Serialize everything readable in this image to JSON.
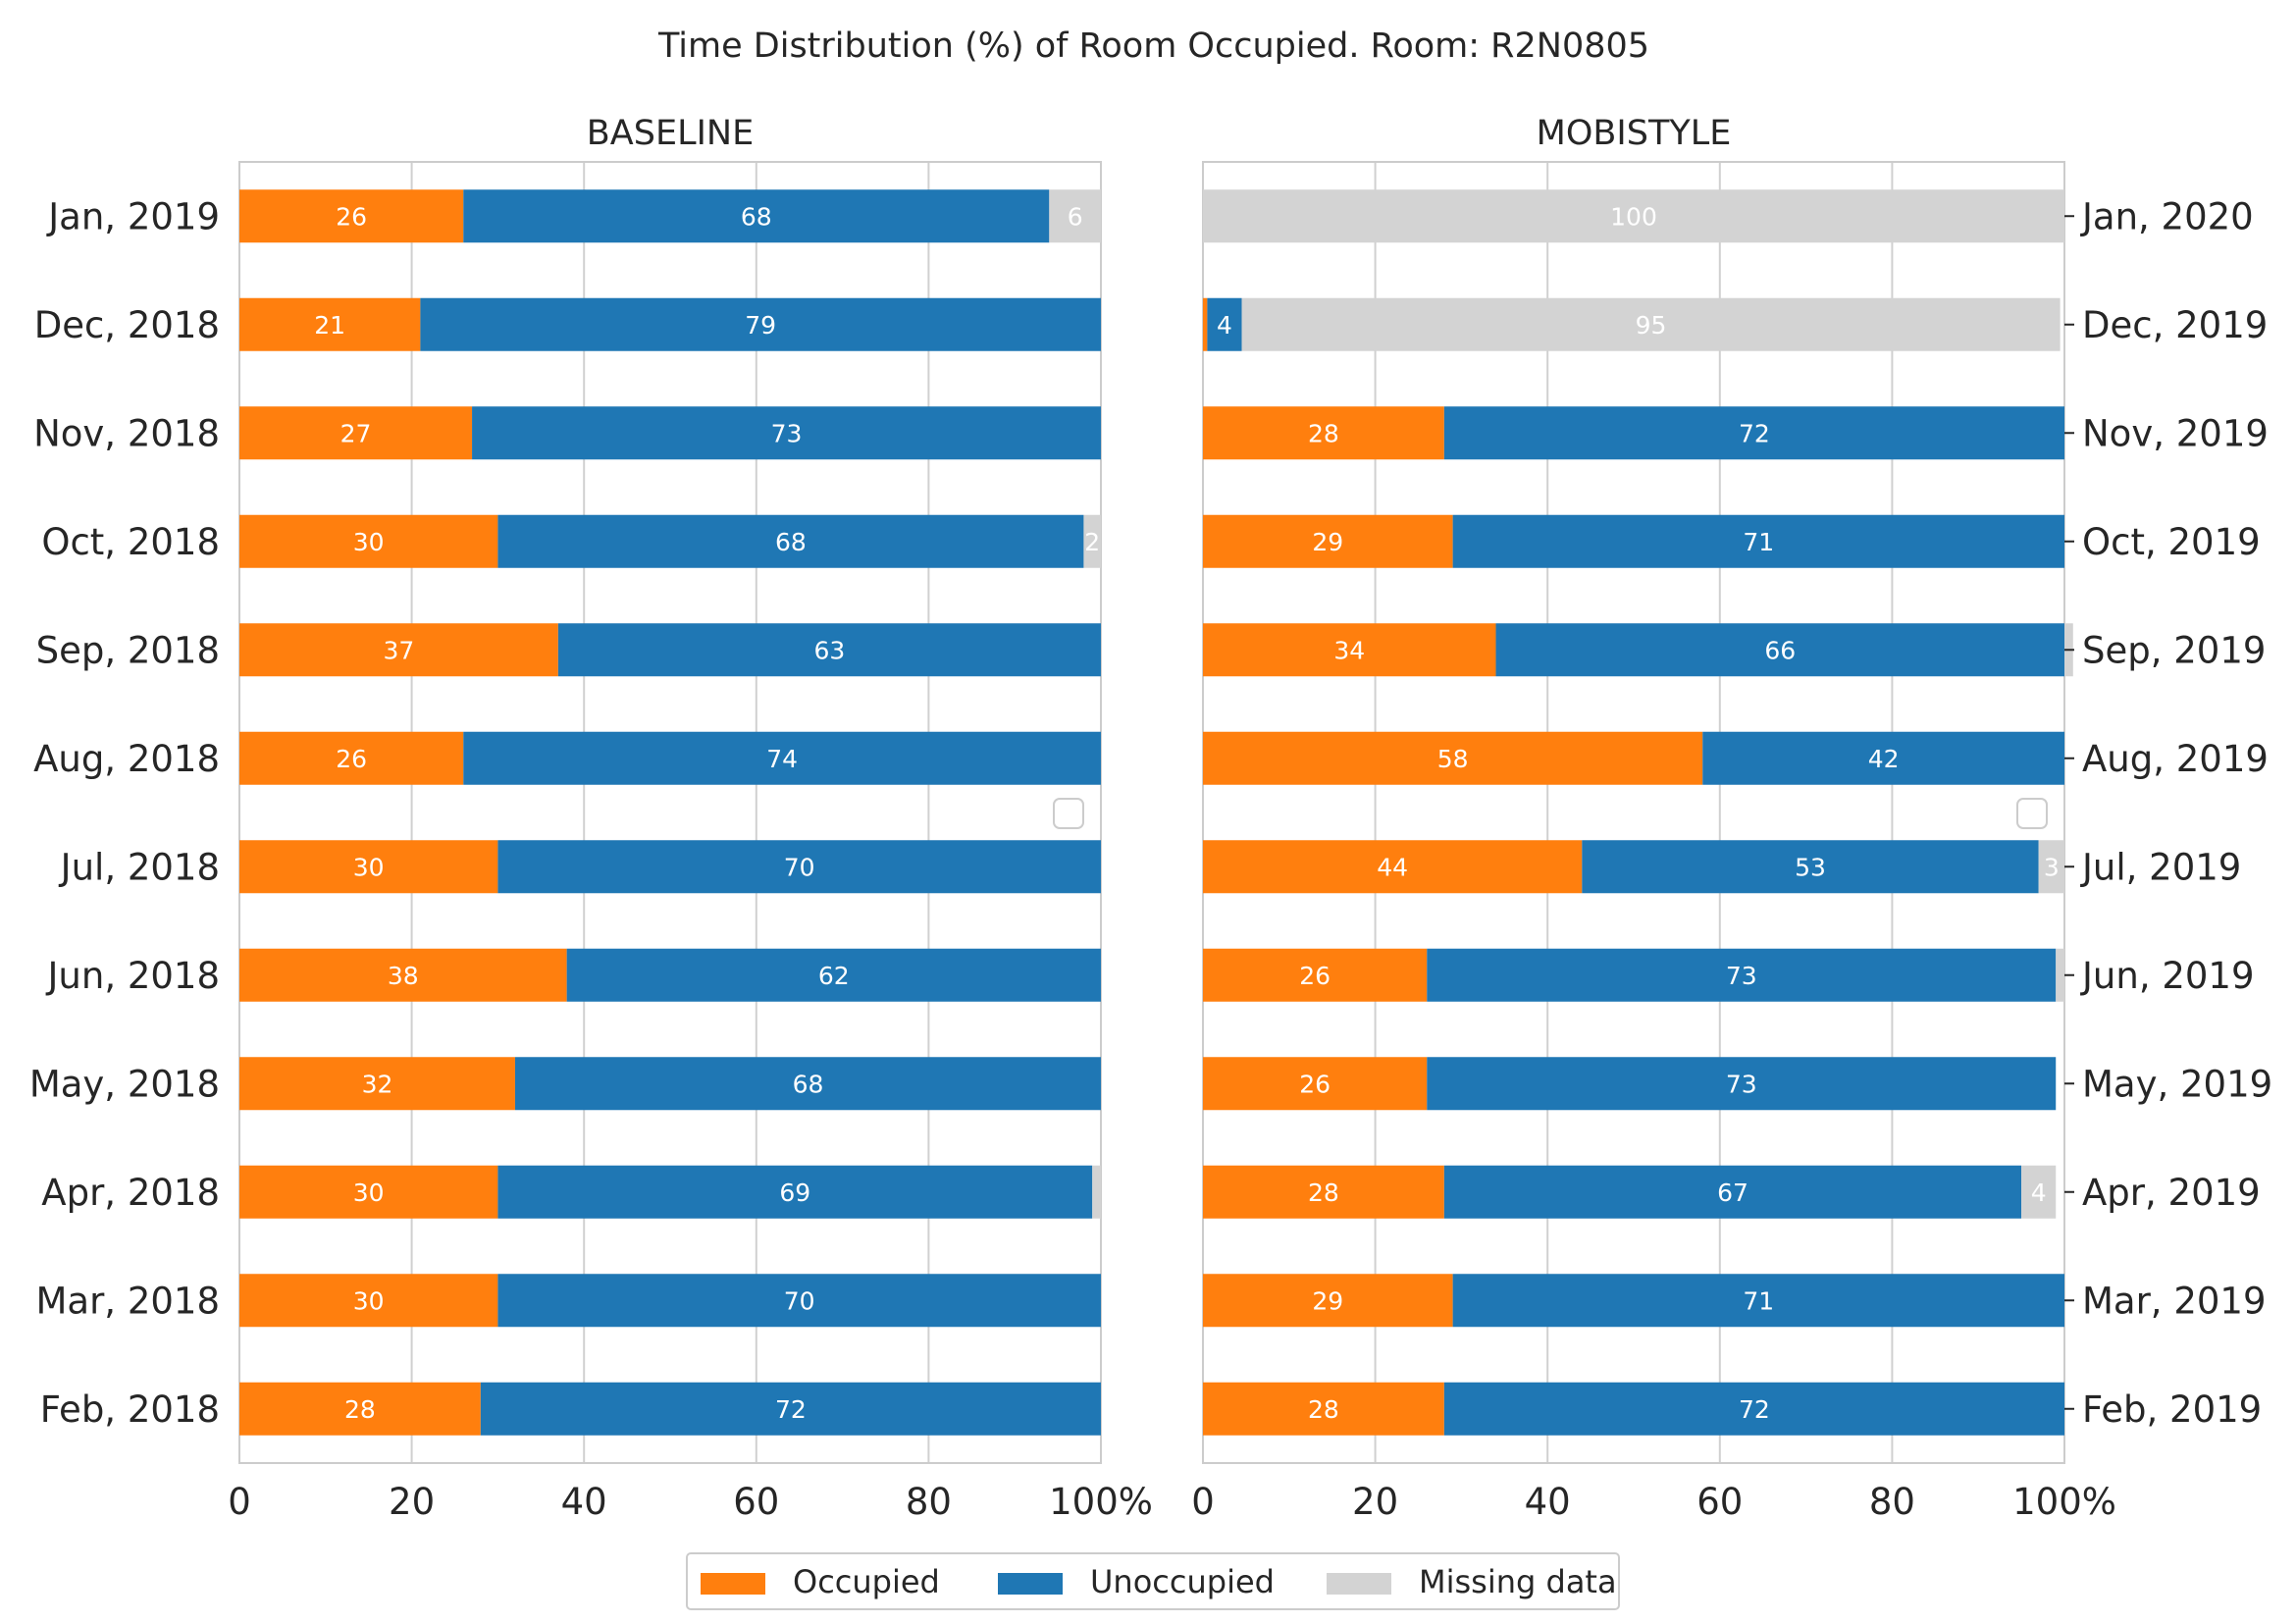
{
  "chart_data": {
    "type": "bar",
    "orientation": "horizontal",
    "stacked": true,
    "title": "Time Distribution (%) of Room Occupied. Room: R2N0805",
    "x_ticks": [
      "0",
      "20",
      "40",
      "60",
      "80",
      "100%"
    ],
    "xlim": [
      0,
      100
    ],
    "grid": true,
    "legend": {
      "placement": "bottom-center",
      "entries": [
        {
          "name": "Occupied",
          "color": "#ff7f0e"
        },
        {
          "name": "Unoccupied",
          "color": "#1f77b4"
        },
        {
          "name": "Missing data",
          "color": "#d3d3d3"
        }
      ]
    },
    "panels": [
      {
        "title": "BASELINE",
        "category_axis_side": "left",
        "categories": [
          "Jan, 2019",
          "Dec, 2018",
          "Nov, 2018",
          "Oct, 2018",
          "Sep, 2018",
          "Aug, 2018",
          "Jul, 2018",
          "Jun, 2018",
          "May, 2018",
          "Apr, 2018",
          "Mar, 2018",
          "Feb, 2018"
        ],
        "series": [
          {
            "name": "Occupied",
            "values": [
              26,
              21,
              27,
              30,
              37,
              26,
              30,
              38,
              32,
              30,
              30,
              28
            ],
            "labels": [
              "26",
              "21",
              "27",
              "30",
              "37",
              "26",
              "30",
              "38",
              "32",
              "30",
              "30",
              "28"
            ]
          },
          {
            "name": "Unoccupied",
            "values": [
              68,
              79,
              73,
              68,
              63,
              74,
              70,
              62,
              68,
              69,
              70,
              72
            ],
            "labels": [
              "68",
              "79",
              "73",
              "68",
              "63",
              "74",
              "70",
              "62",
              "68",
              "69",
              "70",
              "72"
            ]
          },
          {
            "name": "Missing data",
            "values": [
              6,
              0,
              0,
              2,
              0,
              0,
              0,
              0,
              0,
              1,
              0,
              0
            ],
            "labels": [
              "6",
              "",
              "",
              "2",
              "",
              "",
              "",
              "",
              "",
              "",
              "",
              ""
            ]
          }
        ]
      },
      {
        "title": "MOBISTYLE",
        "category_axis_side": "right",
        "categories": [
          "Jan, 2020",
          "Dec, 2019",
          "Nov, 2019",
          "Oct, 2019",
          "Sep, 2019",
          "Aug, 2019",
          "Jul, 2019",
          "Jun, 2019",
          "May, 2019",
          "Apr, 2019",
          "Mar, 2019",
          "Feb, 2019"
        ],
        "series": [
          {
            "name": "Occupied",
            "values": [
              0,
              0.5,
              28,
              29,
              34,
              58,
              44,
              26,
              26,
              28,
              29,
              28
            ],
            "labels": [
              "",
              "",
              "28",
              "29",
              "34",
              "58",
              "44",
              "26",
              "26",
              "28",
              "29",
              "28"
            ]
          },
          {
            "name": "Unoccupied",
            "values": [
              0,
              4,
              72,
              71,
              66,
              42,
              53,
              73,
              73,
              67,
              71,
              72
            ],
            "labels": [
              "",
              "4",
              "72",
              "71",
              "66",
              "42",
              "53",
              "73",
              "73",
              "67",
              "71",
              "72"
            ]
          },
          {
            "name": "Missing data",
            "values": [
              100,
              95,
              0,
              0,
              1,
              0,
              3,
              1,
              0,
              4,
              0,
              0
            ],
            "labels": [
              "100",
              "95",
              "",
              "",
              "",
              "",
              "3",
              "",
              "",
              "4",
              "",
              ""
            ]
          }
        ]
      }
    ]
  }
}
